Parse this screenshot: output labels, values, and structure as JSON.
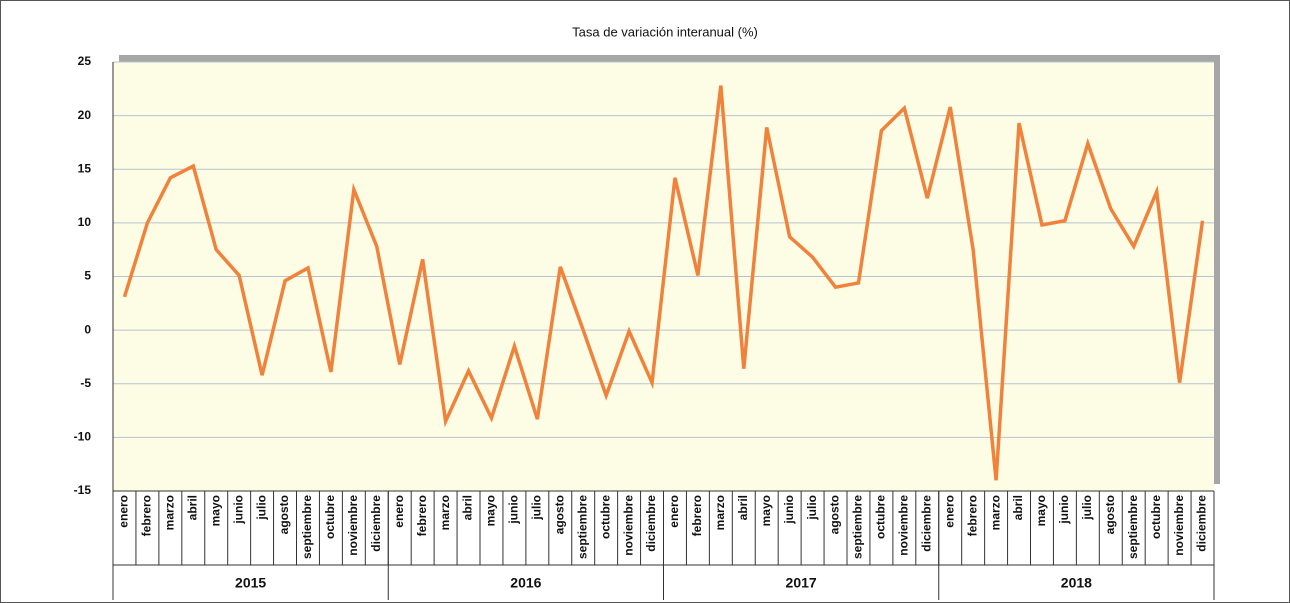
{
  "chart_data": {
    "type": "line",
    "title": "Tasa de variación interanual (%)",
    "categories": [
      "enero",
      "febrero",
      "marzo",
      "abril",
      "mayo",
      "junio",
      "julio",
      "agosto",
      "septiembre",
      "octubre",
      "noviembre",
      "diciembre",
      "enero",
      "febrero",
      "marzo",
      "abril",
      "mayo",
      "junio",
      "julio",
      "agosto",
      "septiembre",
      "octubre",
      "noviembre",
      "diciembre",
      "enero",
      "febrero",
      "marzo",
      "abril",
      "mayo",
      "junio",
      "julio",
      "agosto",
      "septiembre",
      "octubre",
      "noviembre",
      "diciembre",
      "enero",
      "febrero",
      "marzo",
      "abril",
      "mayo",
      "junio",
      "julio",
      "agosto",
      "septiembre",
      "octubre",
      "noviembre",
      "diciembre"
    ],
    "category_groups": [
      "2015",
      "2016",
      "2017",
      "2018"
    ],
    "series": [
      {
        "name": "Tasa de variación interanual (%)",
        "color": "#f0823c",
        "values": [
          3.1,
          10,
          14.2,
          15.3,
          7.5,
          5.1,
          -4.2,
          4.6,
          5.8,
          -3.9,
          13.1,
          7.8,
          -3.2,
          6.6,
          -8.5,
          -3.8,
          -8.2,
          -1.5,
          -8.3,
          5.9,
          0,
          -6.1,
          -0.1,
          -4.9,
          14.2,
          5.1,
          22.8,
          -3.6,
          18.9,
          8.7,
          6.8,
          4.0,
          4.4,
          18.6,
          20.7,
          12.3,
          20.8,
          7.5,
          -14,
          19.3,
          9.8,
          10.2,
          17.4,
          11.3,
          7.8,
          12.9,
          -4.9,
          10.2
        ]
      }
    ],
    "ylim": [
      -15,
      25
    ],
    "yticks": [
      -15,
      -10,
      -5,
      0,
      5,
      10,
      15,
      20,
      25
    ],
    "grid": true,
    "plot_background": "#fdfde6"
  }
}
